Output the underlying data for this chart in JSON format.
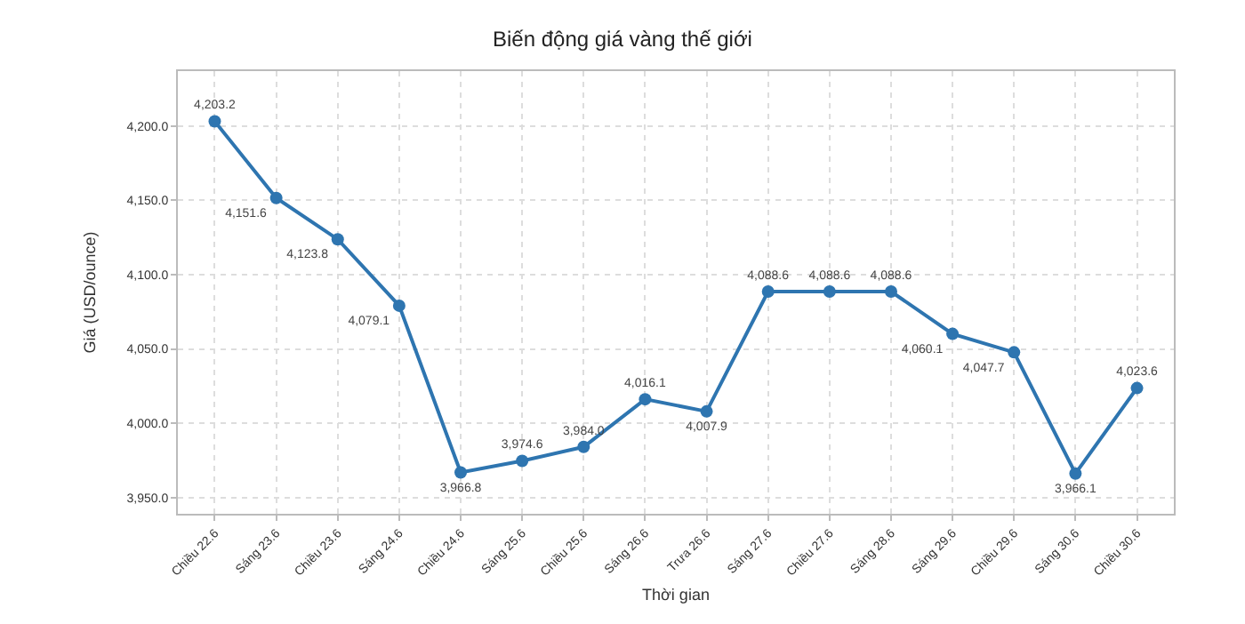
{
  "chart_data": {
    "type": "line",
    "title": "Biến động giá vàng thế giới",
    "xlabel": "Thời gian",
    "ylabel": "Giá (USD/ounce)",
    "categories": [
      "Chiều 22.6",
      "Sáng 23.6",
      "Chiều 23.6",
      "Sáng 24.6",
      "Chiều 24.6",
      "Sáng 25.6",
      "Chiều 25.6",
      "Sáng 26.6",
      "Trưa 26.6",
      "Sáng 27.6",
      "Chiều 27.6",
      "Sáng 28.6",
      "Sáng 29.6",
      "Chiều 29.6",
      "Sáng 30.6",
      "Chiều 30.6"
    ],
    "series": [
      {
        "color": "#2e75b0",
        "values": [
          4203.2,
          4151.6,
          4123.8,
          4079.1,
          3966.8,
          3974.6,
          3984.0,
          4016.1,
          4007.9,
          4088.6,
          4088.6,
          4088.6,
          4060.1,
          4047.7,
          3966.1,
          4023.6
        ],
        "value_labels": [
          "4,203.2",
          "4,151.6",
          "4,123.8",
          "4,079.1",
          "3,966.8",
          "3,974.6",
          "3,984.0",
          "4,016.1",
          "4,007.9",
          "4,088.6",
          "4,088.6",
          "4,088.6",
          "4,060.1",
          "4,047.7",
          "3,966.1",
          "4,023.6"
        ]
      }
    ],
    "ylim": [
      3939,
      4237
    ],
    "yticks": [
      {
        "value": 3950,
        "label": "3,950.0"
      },
      {
        "value": 4000,
        "label": "4,000.0"
      },
      {
        "value": 4050,
        "label": "4,050.0"
      },
      {
        "value": 4100,
        "label": "4,100.0"
      },
      {
        "value": 4150,
        "label": "4,150.0"
      },
      {
        "value": 4200,
        "label": "4,200.0"
      }
    ],
    "grid": true,
    "marker": "circle",
    "line_style": "solid"
  }
}
